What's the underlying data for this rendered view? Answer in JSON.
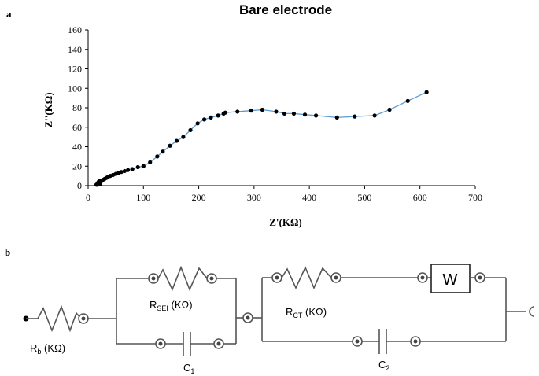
{
  "panel_a_label": "a",
  "panel_b_label": "b",
  "chart_data": {
    "type": "scatter",
    "title": "Bare electrode",
    "xlabel": "Z'(KΩ)",
    "ylabel": "Z''(KΩ)",
    "xlim": [
      0,
      700
    ],
    "ylim": [
      0,
      160
    ],
    "xticks": [
      "0",
      "100",
      "200",
      "300",
      "400",
      "500",
      "600",
      "700"
    ],
    "yticks": [
      "0",
      "20",
      "40",
      "60",
      "80",
      "100",
      "120",
      "140",
      "160"
    ],
    "grid": false,
    "series": [
      {
        "name": "Bare electrode",
        "color": "#5b9bd5",
        "marker_color": "#000000",
        "x": [
          15,
          16,
          17,
          18,
          19,
          20,
          21,
          22,
          23,
          25,
          27,
          30,
          33,
          36,
          40,
          45,
          50,
          55,
          60,
          66,
          72,
          80,
          90,
          100,
          112,
          125,
          135,
          148,
          160,
          172,
          185,
          198,
          210,
          222,
          235,
          245,
          248,
          270,
          295,
          315,
          340,
          355,
          372,
          392,
          412,
          450,
          482,
          518,
          545,
          578,
          612
        ],
        "y": [
          1,
          1,
          2,
          3,
          4,
          3,
          5,
          2,
          4,
          5,
          6,
          7,
          8,
          9,
          10,
          11,
          12,
          13,
          14,
          15,
          16,
          17,
          19,
          20,
          24,
          30,
          35,
          41,
          46,
          50,
          57,
          64,
          68,
          70,
          72,
          74,
          75,
          76,
          77,
          78,
          76,
          74,
          74,
          73,
          72,
          70,
          71,
          72,
          78,
          87,
          96
        ]
      }
    ]
  },
  "circuit": {
    "rb_label": "R",
    "rb_sub": "b",
    "rb_unit": " (KΩ)",
    "rsei_label": "R",
    "rsei_sub": "SEI",
    "rsei_unit": " (KΩ)",
    "rct_label": "R",
    "rct_sub": "CT",
    "rct_unit": " (KΩ)",
    "c1_label": "C",
    "c1_sub": "1",
    "c2_label": "C",
    "c2_sub": "2",
    "w_label": "W"
  }
}
